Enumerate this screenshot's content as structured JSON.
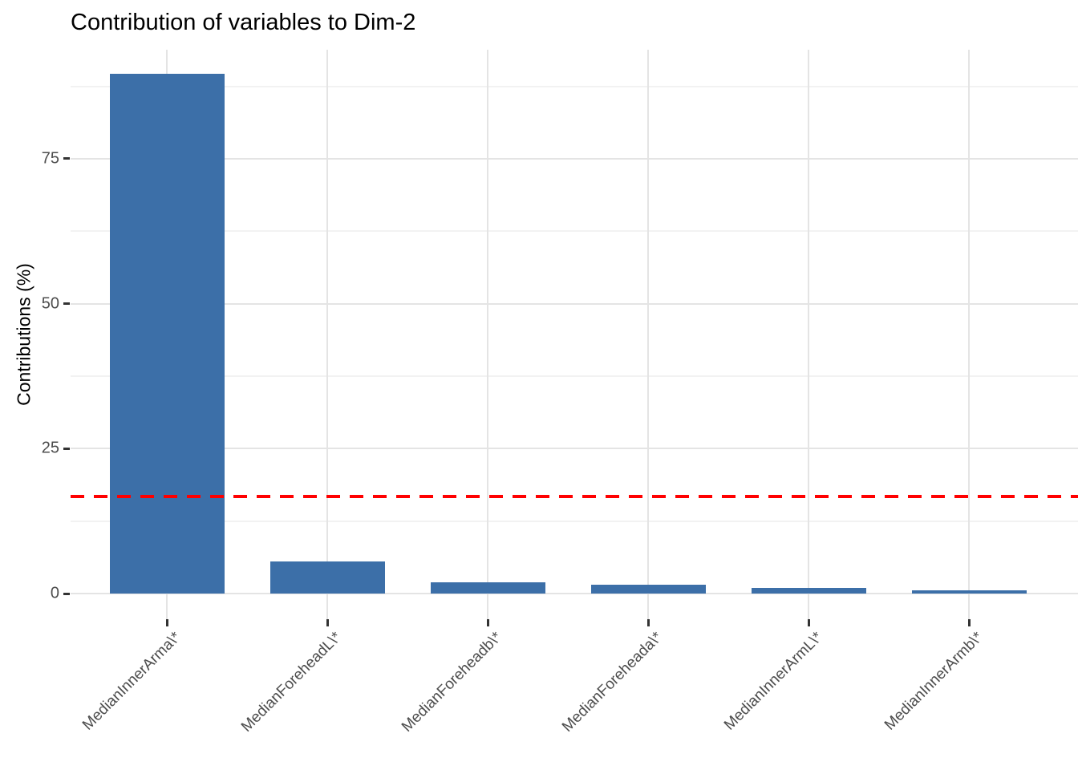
{
  "chart_data": {
    "type": "bar",
    "title": "Contribution of variables to Dim-2",
    "xlabel": "",
    "ylabel": "Contributions (%)",
    "categories": [
      "MedianInnerArma\\*",
      "MedianForeheadL\\*",
      "MedianForeheadb\\*",
      "MedianForeheada\\*",
      "MedianInnerArmL\\*",
      "MedianInnerArmb\\*"
    ],
    "values": [
      89.6,
      5.5,
      2.0,
      1.5,
      1.0,
      0.5
    ],
    "yticks": [
      0,
      25,
      50,
      75
    ],
    "minor_gridlines": [
      12.5,
      37.5,
      62.5,
      87.5
    ],
    "ylim": [
      0,
      93.8
    ],
    "grid": true,
    "legend": "none",
    "bar_color": "#3c6fa8",
    "reference_line": {
      "value": 16.7,
      "color": "#ff0000",
      "linetype": "dashed"
    },
    "colors": {
      "background": "#ffffff",
      "grid_major": "#e4e4e4",
      "grid_minor": "#f2f2f2",
      "tick_text": "#4d4d4d",
      "title_text": "#000000"
    }
  }
}
